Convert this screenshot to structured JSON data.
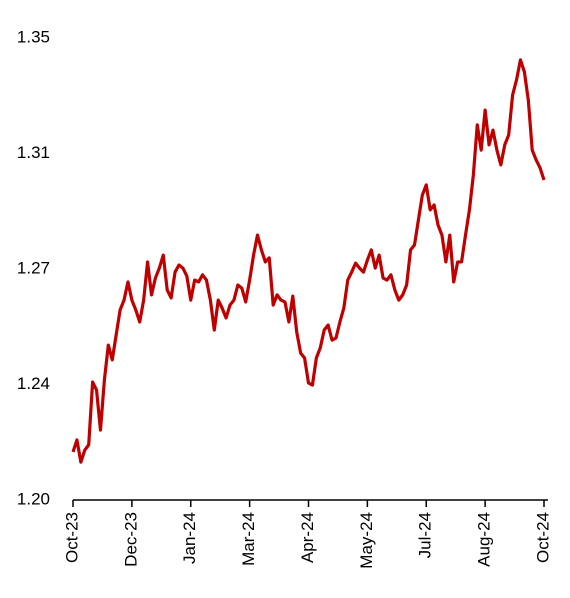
{
  "chart_data": {
    "type": "line",
    "categories": [
      "Oct-23",
      null,
      null,
      null,
      null,
      null,
      null,
      null,
      null,
      null,
      null,
      null,
      null,
      null,
      null,
      "Dec-23",
      null,
      null,
      null,
      null,
      null,
      null,
      null,
      null,
      null,
      null,
      null,
      null,
      null,
      null,
      "Jan-24",
      null,
      null,
      null,
      null,
      null,
      null,
      null,
      null,
      null,
      null,
      null,
      null,
      null,
      null,
      "Mar-24",
      null,
      null,
      null,
      null,
      null,
      null,
      null,
      null,
      null,
      null,
      null,
      null,
      null,
      null,
      "Apr-24",
      null,
      null,
      null,
      null,
      null,
      null,
      null,
      null,
      null,
      null,
      null,
      null,
      null,
      null,
      "May-24",
      null,
      null,
      null,
      null,
      null,
      null,
      null,
      null,
      null,
      null,
      null,
      null,
      null,
      null,
      "Jul-24",
      null,
      null,
      null,
      null,
      null,
      null,
      null,
      null,
      null,
      null,
      null,
      null,
      null,
      null,
      "Aug-24",
      null,
      null,
      null,
      null,
      null,
      null,
      null,
      null,
      null,
      null,
      null,
      null,
      null,
      null,
      "Oct-24"
    ],
    "series": [
      {
        "color": "#c00000",
        "values": [
          1.2156,
          1.2195,
          1.2123,
          1.2162,
          1.2179,
          1.2383,
          1.2357,
          1.2227,
          1.239,
          1.2503,
          1.2455,
          1.2536,
          1.2617,
          1.2649,
          1.2708,
          1.2649,
          1.2617,
          1.2578,
          1.2649,
          1.2773,
          1.2666,
          1.2721,
          1.2753,
          1.2795,
          1.2682,
          1.2656,
          1.274,
          1.2763,
          1.2753,
          1.2727,
          1.2649,
          1.2714,
          1.2708,
          1.2731,
          1.2714,
          1.2649,
          1.2552,
          1.2649,
          1.2623,
          1.2591,
          1.2633,
          1.2649,
          1.2698,
          1.2688,
          1.2643,
          1.2714,
          1.2795,
          1.286,
          1.2812,
          1.2773,
          1.2786,
          1.2633,
          1.2666,
          1.2649,
          1.2643,
          1.2578,
          1.2662,
          1.2545,
          1.2477,
          1.2461,
          1.238,
          1.2373,
          1.2461,
          1.2494,
          1.2552,
          1.2568,
          1.2519,
          1.2526,
          1.2578,
          1.2623,
          1.2714,
          1.274,
          1.2769,
          1.2753,
          1.274,
          1.2779,
          1.2812,
          1.2753,
          1.2795,
          1.2721,
          1.2714,
          1.2731,
          1.2682,
          1.2649,
          1.2666,
          1.2698,
          1.2812,
          1.2828,
          1.2909,
          1.299,
          1.3023,
          1.2942,
          1.2958,
          1.2893,
          1.286,
          1.2773,
          1.286,
          1.2708,
          1.2773,
          1.2773,
          1.286,
          1.2942,
          1.3055,
          1.3218,
          1.3136,
          1.3266,
          1.3153,
          1.3201,
          1.3136,
          1.3088,
          1.3153,
          1.3185,
          1.3315,
          1.3364,
          1.3429,
          1.339,
          1.3299,
          1.3136,
          1.3104,
          1.3078,
          1.3039
        ]
      }
    ],
    "ylim": [
      1.2,
      1.35
    ],
    "yticks": [
      {
        "value": 1.2,
        "label": "1.20"
      },
      {
        "value": 1.2375,
        "label": "1.24"
      },
      {
        "value": 1.275,
        "label": "1.27"
      },
      {
        "value": 1.3125,
        "label": "1.31"
      },
      1.35
    ]
  }
}
